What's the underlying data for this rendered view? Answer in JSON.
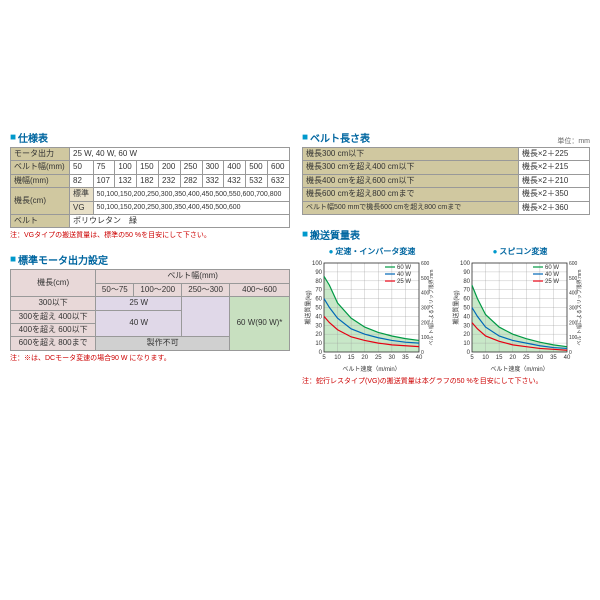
{
  "spec_table": {
    "title": "仕様表",
    "rows": [
      {
        "label": "モータ出力",
        "value": "25 W, 40 W, 60 W"
      },
      {
        "label": "ベルト幅(mm)",
        "cells": [
          "50",
          "75",
          "100",
          "150",
          "200",
          "250",
          "300",
          "400",
          "500",
          "600"
        ]
      },
      {
        "label": "機幅(mm)",
        "cells": [
          "82",
          "107",
          "132",
          "182",
          "232",
          "282",
          "332",
          "432",
          "532",
          "632"
        ]
      },
      {
        "label": "機長(cm)",
        "sub": "標準",
        "value": "50,100,150,200,250,300,350,400,450,500,550,600,700,800"
      },
      {
        "label": "",
        "sub": "VG",
        "value": "50,100,150,200,250,300,350,400,450,500,600"
      },
      {
        "label": "ベルト",
        "value": "ポリウレタン　緑"
      }
    ],
    "note": "注：VGタイプの搬送質量は、標準の50 %を目安にして下さい。"
  },
  "motor_table": {
    "title": "標準モータ出力設定",
    "col_header": "ベルト幅(mm)",
    "row_header": "機長(cm)",
    "col_groups": [
      "50～75",
      "100～200",
      "250～300",
      "400～600"
    ],
    "rows": [
      {
        "label": "300以下",
        "w25": true
      },
      {
        "label": "300を超え 400以下"
      },
      {
        "label": "400を超え 600以下"
      },
      {
        "label": "600を超え 800まで",
        "cell": "製作不可"
      }
    ],
    "w25": "25 W",
    "w40": "40 W",
    "w60": "60 W(90 W)*",
    "note": "注：※は、DCモータ変速の場合90 W になります。"
  },
  "length_table": {
    "title": "ベルト長さ表",
    "unit": "単位：mm",
    "rows": [
      {
        "cond": "機長300 cm以下",
        "formula": "機長×2＋225"
      },
      {
        "cond": "機長300 cmを超え400 cm以下",
        "formula": "機長×2＋215"
      },
      {
        "cond": "機長400 cmを超え600 cm以下",
        "formula": "機長×2＋210"
      },
      {
        "cond": "機長600 cmを超え800 cmまで",
        "formula": "機長×2＋350"
      },
      {
        "cond": "ベルト幅500 mmで機長600 cmを超え800 cmまで",
        "formula": "機長×2＋360"
      }
    ]
  },
  "mass_table": {
    "title": "搬送質量表"
  },
  "chart1": {
    "title": "定速・インバータ変速",
    "xlabel": "ベルト速度（m/min）",
    "ylabel": "搬送質量(kg)",
    "ylabel2": "ベル ト幅によるスリップ限界:mm",
    "xlim": [
      5,
      40
    ],
    "ylim": [
      0,
      100
    ],
    "ylim2": [
      0,
      600
    ],
    "xticks": [
      5,
      10,
      15,
      20,
      25,
      30,
      35,
      40
    ],
    "yticks": [
      0,
      10,
      20,
      30,
      40,
      50,
      60,
      70,
      80,
      90,
      100
    ],
    "legend": [
      "60 W",
      "40 W",
      "25 W"
    ],
    "colors": {
      "60": "#009944",
      "40": "#0068b7",
      "25": "#e60012",
      "fill": "#c8e8c8",
      "grid": "#999"
    },
    "series": {
      "60": [
        [
          5,
          85
        ],
        [
          7,
          75
        ],
        [
          10,
          55
        ],
        [
          15,
          38
        ],
        [
          20,
          28
        ],
        [
          25,
          22
        ],
        [
          30,
          18
        ],
        [
          35,
          15
        ],
        [
          40,
          13
        ]
      ],
      "40": [
        [
          5,
          60
        ],
        [
          7,
          50
        ],
        [
          10,
          38
        ],
        [
          15,
          26
        ],
        [
          20,
          20
        ],
        [
          25,
          16
        ],
        [
          30,
          13
        ],
        [
          35,
          11
        ],
        [
          40,
          10
        ]
      ],
      "25": [
        [
          5,
          40
        ],
        [
          7,
          33
        ],
        [
          10,
          25
        ],
        [
          15,
          17
        ],
        [
          20,
          13
        ],
        [
          25,
          10
        ],
        [
          30,
          8
        ],
        [
          35,
          7
        ],
        [
          40,
          6
        ]
      ]
    }
  },
  "chart2": {
    "title": "スピコン変速",
    "xlabel": "ベルト速度（m/min）",
    "ylabel": "搬送質量(kg)",
    "ylabel2": "ベル ト幅によるスリップ限界:mm",
    "xlim": [
      5,
      40
    ],
    "ylim": [
      0,
      100
    ],
    "ylim2": [
      0,
      600
    ],
    "xticks": [
      5,
      10,
      15,
      20,
      25,
      30,
      35,
      40
    ],
    "yticks": [
      0,
      10,
      20,
      30,
      40,
      50,
      60,
      70,
      80,
      90,
      100
    ],
    "legend": [
      "60 W",
      "40 W",
      "25 W"
    ],
    "colors": {
      "60": "#009944",
      "40": "#0068b7",
      "25": "#e60012",
      "fill": "#c8e8c8",
      "grid": "#999"
    },
    "series": {
      "60": [
        [
          5,
          75
        ],
        [
          7,
          60
        ],
        [
          10,
          42
        ],
        [
          15,
          28
        ],
        [
          20,
          20
        ],
        [
          25,
          15
        ],
        [
          30,
          11
        ],
        [
          35,
          8
        ],
        [
          40,
          6
        ]
      ],
      "40": [
        [
          5,
          50
        ],
        [
          7,
          40
        ],
        [
          10,
          28
        ],
        [
          15,
          18
        ],
        [
          20,
          13
        ],
        [
          25,
          10
        ],
        [
          30,
          7
        ],
        [
          35,
          5
        ],
        [
          40,
          4
        ]
      ],
      "25": [
        [
          5,
          33
        ],
        [
          7,
          26
        ],
        [
          10,
          18
        ],
        [
          15,
          12
        ],
        [
          20,
          8
        ],
        [
          25,
          6
        ],
        [
          30,
          4
        ],
        [
          35,
          3
        ],
        [
          40,
          2
        ]
      ]
    }
  },
  "chart_note": "注：蛇行レスタイプ(VG)の搬送質量は本グラフの50 %を目安にして下さい。"
}
